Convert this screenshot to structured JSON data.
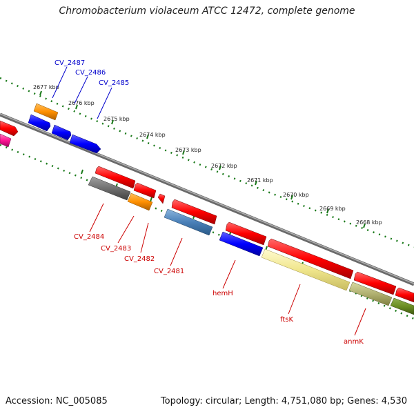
{
  "title": "Chromobacterium violaceum ATCC 12472, complete genome",
  "footer": {
    "accession": "Accession: NC_005085",
    "summary": "Topology: circular; Length: 4,751,080 bp; Genes: 4,530"
  },
  "colors": {
    "backbone": "#8a8a8a",
    "ticks": "#1a7a1a",
    "forward_label": "#0000cc",
    "reverse_label": "#cc0000"
  },
  "ruler": [
    "2677 kbp",
    "2676 kbp",
    "2675 kbp",
    "2674 kbp",
    "2673 kbp",
    "2672 kbp",
    "2671 kbp",
    "2670 kbp",
    "2669 kbp",
    "2668 kbp"
  ],
  "labels": {
    "forward": [
      "CV_2487",
      "CV_2486",
      "CV_2485"
    ],
    "reverse": [
      "CV_2484",
      "CV_2483",
      "CV_2482",
      "CV_2481",
      "hemH",
      "ftsK",
      "anmK"
    ]
  }
}
